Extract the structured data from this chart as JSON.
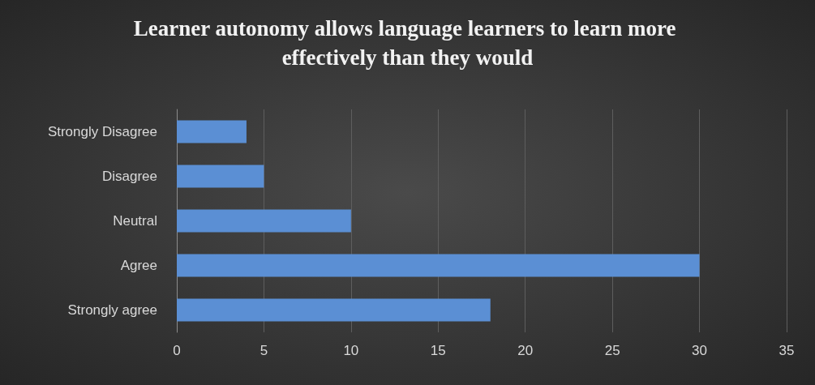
{
  "chart_data": {
    "type": "bar",
    "orientation": "horizontal",
    "title": "Learner autonomy allows language learners to learn more effectively than they would",
    "categories": [
      "Strongly Disagree",
      "Disagree",
      "Neutral",
      "Agree",
      "Strongly agree"
    ],
    "values": [
      4,
      5,
      10,
      30,
      18
    ],
    "color": "#5b8fd4",
    "xlim": [
      0,
      35
    ],
    "xticks": [
      0,
      5,
      10,
      15,
      20,
      25,
      30,
      35
    ],
    "grid": "x"
  }
}
